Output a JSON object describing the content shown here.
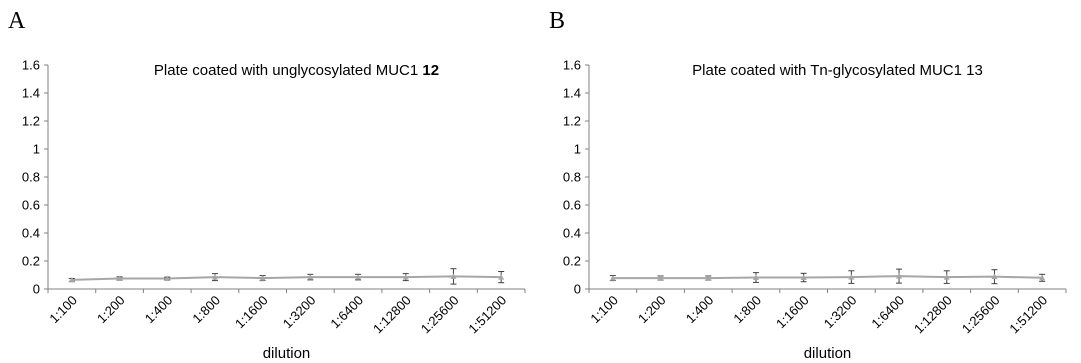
{
  "chart_data": [
    {
      "type": "line",
      "panel_label": "A",
      "title": "Plate coated with unglycosylated MUC1 ",
      "title_bold_suffix": "12",
      "xlabel": "dilution",
      "ylabel": "",
      "ylim": [
        0,
        1.6
      ],
      "yticks": [
        0,
        0.2,
        0.4,
        0.6,
        0.8,
        1,
        1.2,
        1.4,
        1.6
      ],
      "ytick_labels": [
        "0",
        "0.2",
        "0.4",
        "0.6",
        "0.8",
        "1",
        "1.2",
        "1.4",
        "1.6"
      ],
      "categories": [
        "1:100",
        "1:200",
        "1:400",
        "1:800",
        "1:1600",
        "1:3200",
        "1:6400",
        "1:12800",
        "1:25600",
        "1:51200"
      ],
      "grid": false,
      "series": [
        {
          "values": [
            0.065,
            0.075,
            0.075,
            0.085,
            0.078,
            0.085,
            0.085,
            0.085,
            0.09,
            0.085
          ],
          "errors": [
            0.01,
            0.012,
            0.01,
            0.025,
            0.018,
            0.02,
            0.02,
            0.025,
            0.055,
            0.04
          ],
          "color": "#a6a6a6"
        }
      ]
    },
    {
      "type": "line",
      "panel_label": "B",
      "title": "Plate coated with Tn-glycosylated MUC1 13",
      "title_bold_suffix": "",
      "xlabel": "dilution",
      "ylabel": "",
      "ylim": [
        0,
        1.6
      ],
      "yticks": [
        0,
        0.2,
        0.4,
        0.6,
        0.8,
        1,
        1.2,
        1.4,
        1.6
      ],
      "ytick_labels": [
        "0",
        "0.2",
        "0.4",
        "0.6",
        "0.8",
        "1",
        "1.2",
        "1.4",
        "1.6"
      ],
      "categories": [
        "1:100",
        "1:200",
        "1:400",
        "1:800",
        "1:1600",
        "1:3200",
        "1:6400",
        "1:12800",
        "1:25600",
        "1:51200"
      ],
      "grid": false,
      "series": [
        {
          "values": [
            0.078,
            0.078,
            0.078,
            0.082,
            0.082,
            0.085,
            0.092,
            0.085,
            0.088,
            0.08
          ],
          "errors": [
            0.018,
            0.015,
            0.015,
            0.035,
            0.03,
            0.045,
            0.05,
            0.045,
            0.05,
            0.025
          ],
          "color": "#a6a6a6"
        }
      ]
    }
  ]
}
